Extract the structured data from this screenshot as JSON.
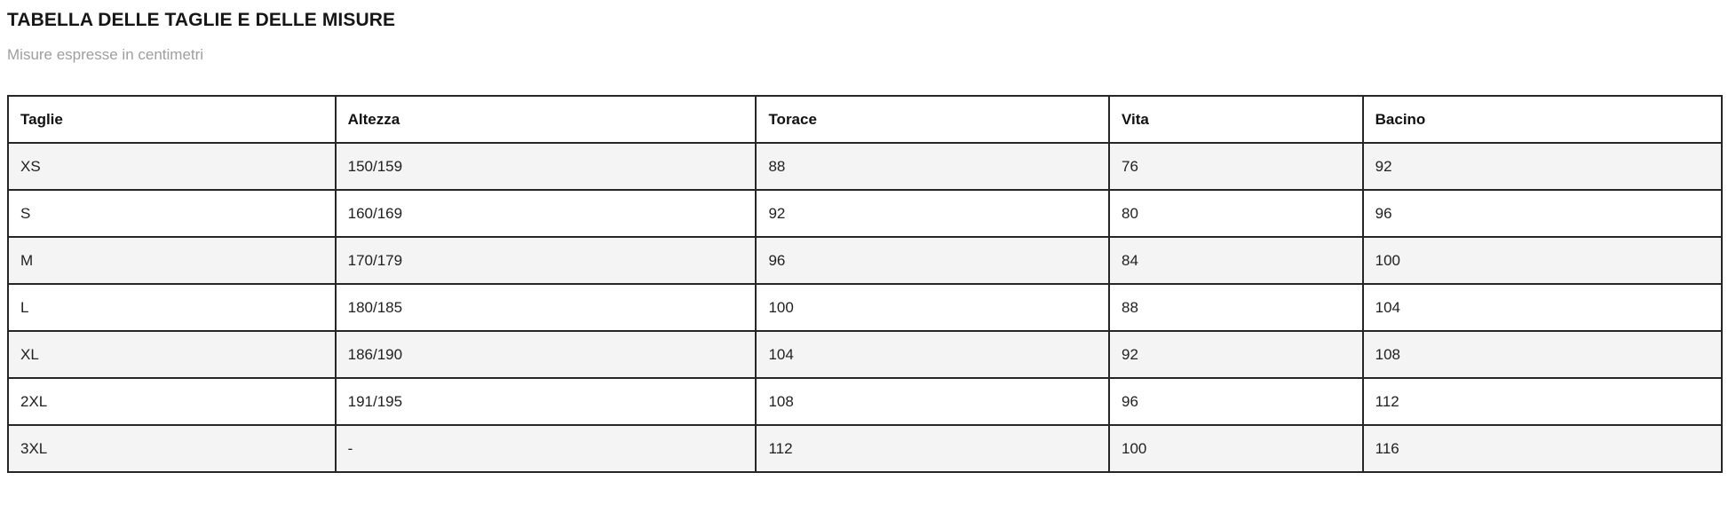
{
  "page": {
    "title": "TABELLA DELLE TAGLIE E DELLE MISURE",
    "subtitle": "Misure espresse in centimetri"
  },
  "chart_data": {
    "type": "table",
    "title": "TABELLA DELLE TAGLIE E DELLE MISURE",
    "subtitle": "Misure espresse in centimetri",
    "unit": "centimetri",
    "columns": [
      "Taglie",
      "Altezza",
      "Torace",
      "Vita",
      "Bacino"
    ],
    "rows": [
      [
        "XS",
        "150/159",
        "88",
        "76",
        "92"
      ],
      [
        "S",
        "160/169",
        "92",
        "80",
        "96"
      ],
      [
        "M",
        "170/179",
        "96",
        "84",
        "100"
      ],
      [
        "L",
        "180/185",
        "100",
        "88",
        "104"
      ],
      [
        "XL",
        "186/190",
        "104",
        "92",
        "108"
      ],
      [
        "2XL",
        "191/195",
        "108",
        "96",
        "112"
      ],
      [
        "3XL",
        "-",
        "112",
        "100",
        "116"
      ]
    ],
    "layout_hints": {
      "striped_rows": true,
      "first_data_row_shaded": true,
      "grid": true
    }
  },
  "colors": {
    "title_color": "#161616",
    "subtitle_color": "#9e9e9e",
    "border_color": "#262626",
    "row_alt_bg": "#f4f4f4",
    "header_text_color": "#111111",
    "cell_text_color": "#212121"
  }
}
